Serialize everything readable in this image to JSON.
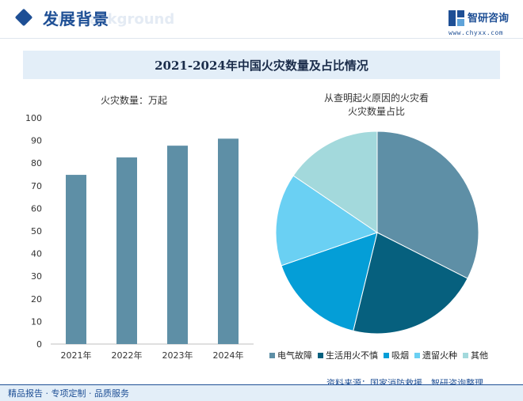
{
  "header": {
    "title": "发展背景",
    "ghost_text": "ent background",
    "logo_name": "智研咨询",
    "logo_url": "www.chyxx.com"
  },
  "title": "2021-2024年中国火灾数量及占比情况",
  "source": "资料来源：国家消防救援、智研咨询整理",
  "footer": "精品报告 · 专项定制 · 品质服务",
  "colors": {
    "brand": "#1e4f95",
    "bar": "#5e8fa6",
    "title_bg": "#e3eef8"
  },
  "chart_data": [
    {
      "type": "bar",
      "title": "火灾数量：万起",
      "categories": [
        "2021年",
        "2022年",
        "2023年",
        "2024年"
      ],
      "values": [
        74.8,
        82.5,
        87.7,
        90.8
      ],
      "ylim": [
        0,
        100
      ],
      "yticks": [
        0,
        10,
        20,
        30,
        40,
        50,
        60,
        70,
        80,
        90,
        100
      ],
      "grid": false
    },
    {
      "type": "pie",
      "title_lines": [
        "从查明起火原因的火灾看",
        "火灾数量占比"
      ],
      "labels": [
        "电气故障",
        "生活用火不慎",
        "吸烟",
        "遗留火种",
        "其他"
      ],
      "values": [
        32.5,
        21.3,
        15.9,
        14.8,
        15.5
      ],
      "colors": [
        "#5e8fa6",
        "#06607e",
        "#049ed7",
        "#6ad0f3",
        "#a3d9dc"
      ],
      "legend_position": "bottom"
    }
  ]
}
